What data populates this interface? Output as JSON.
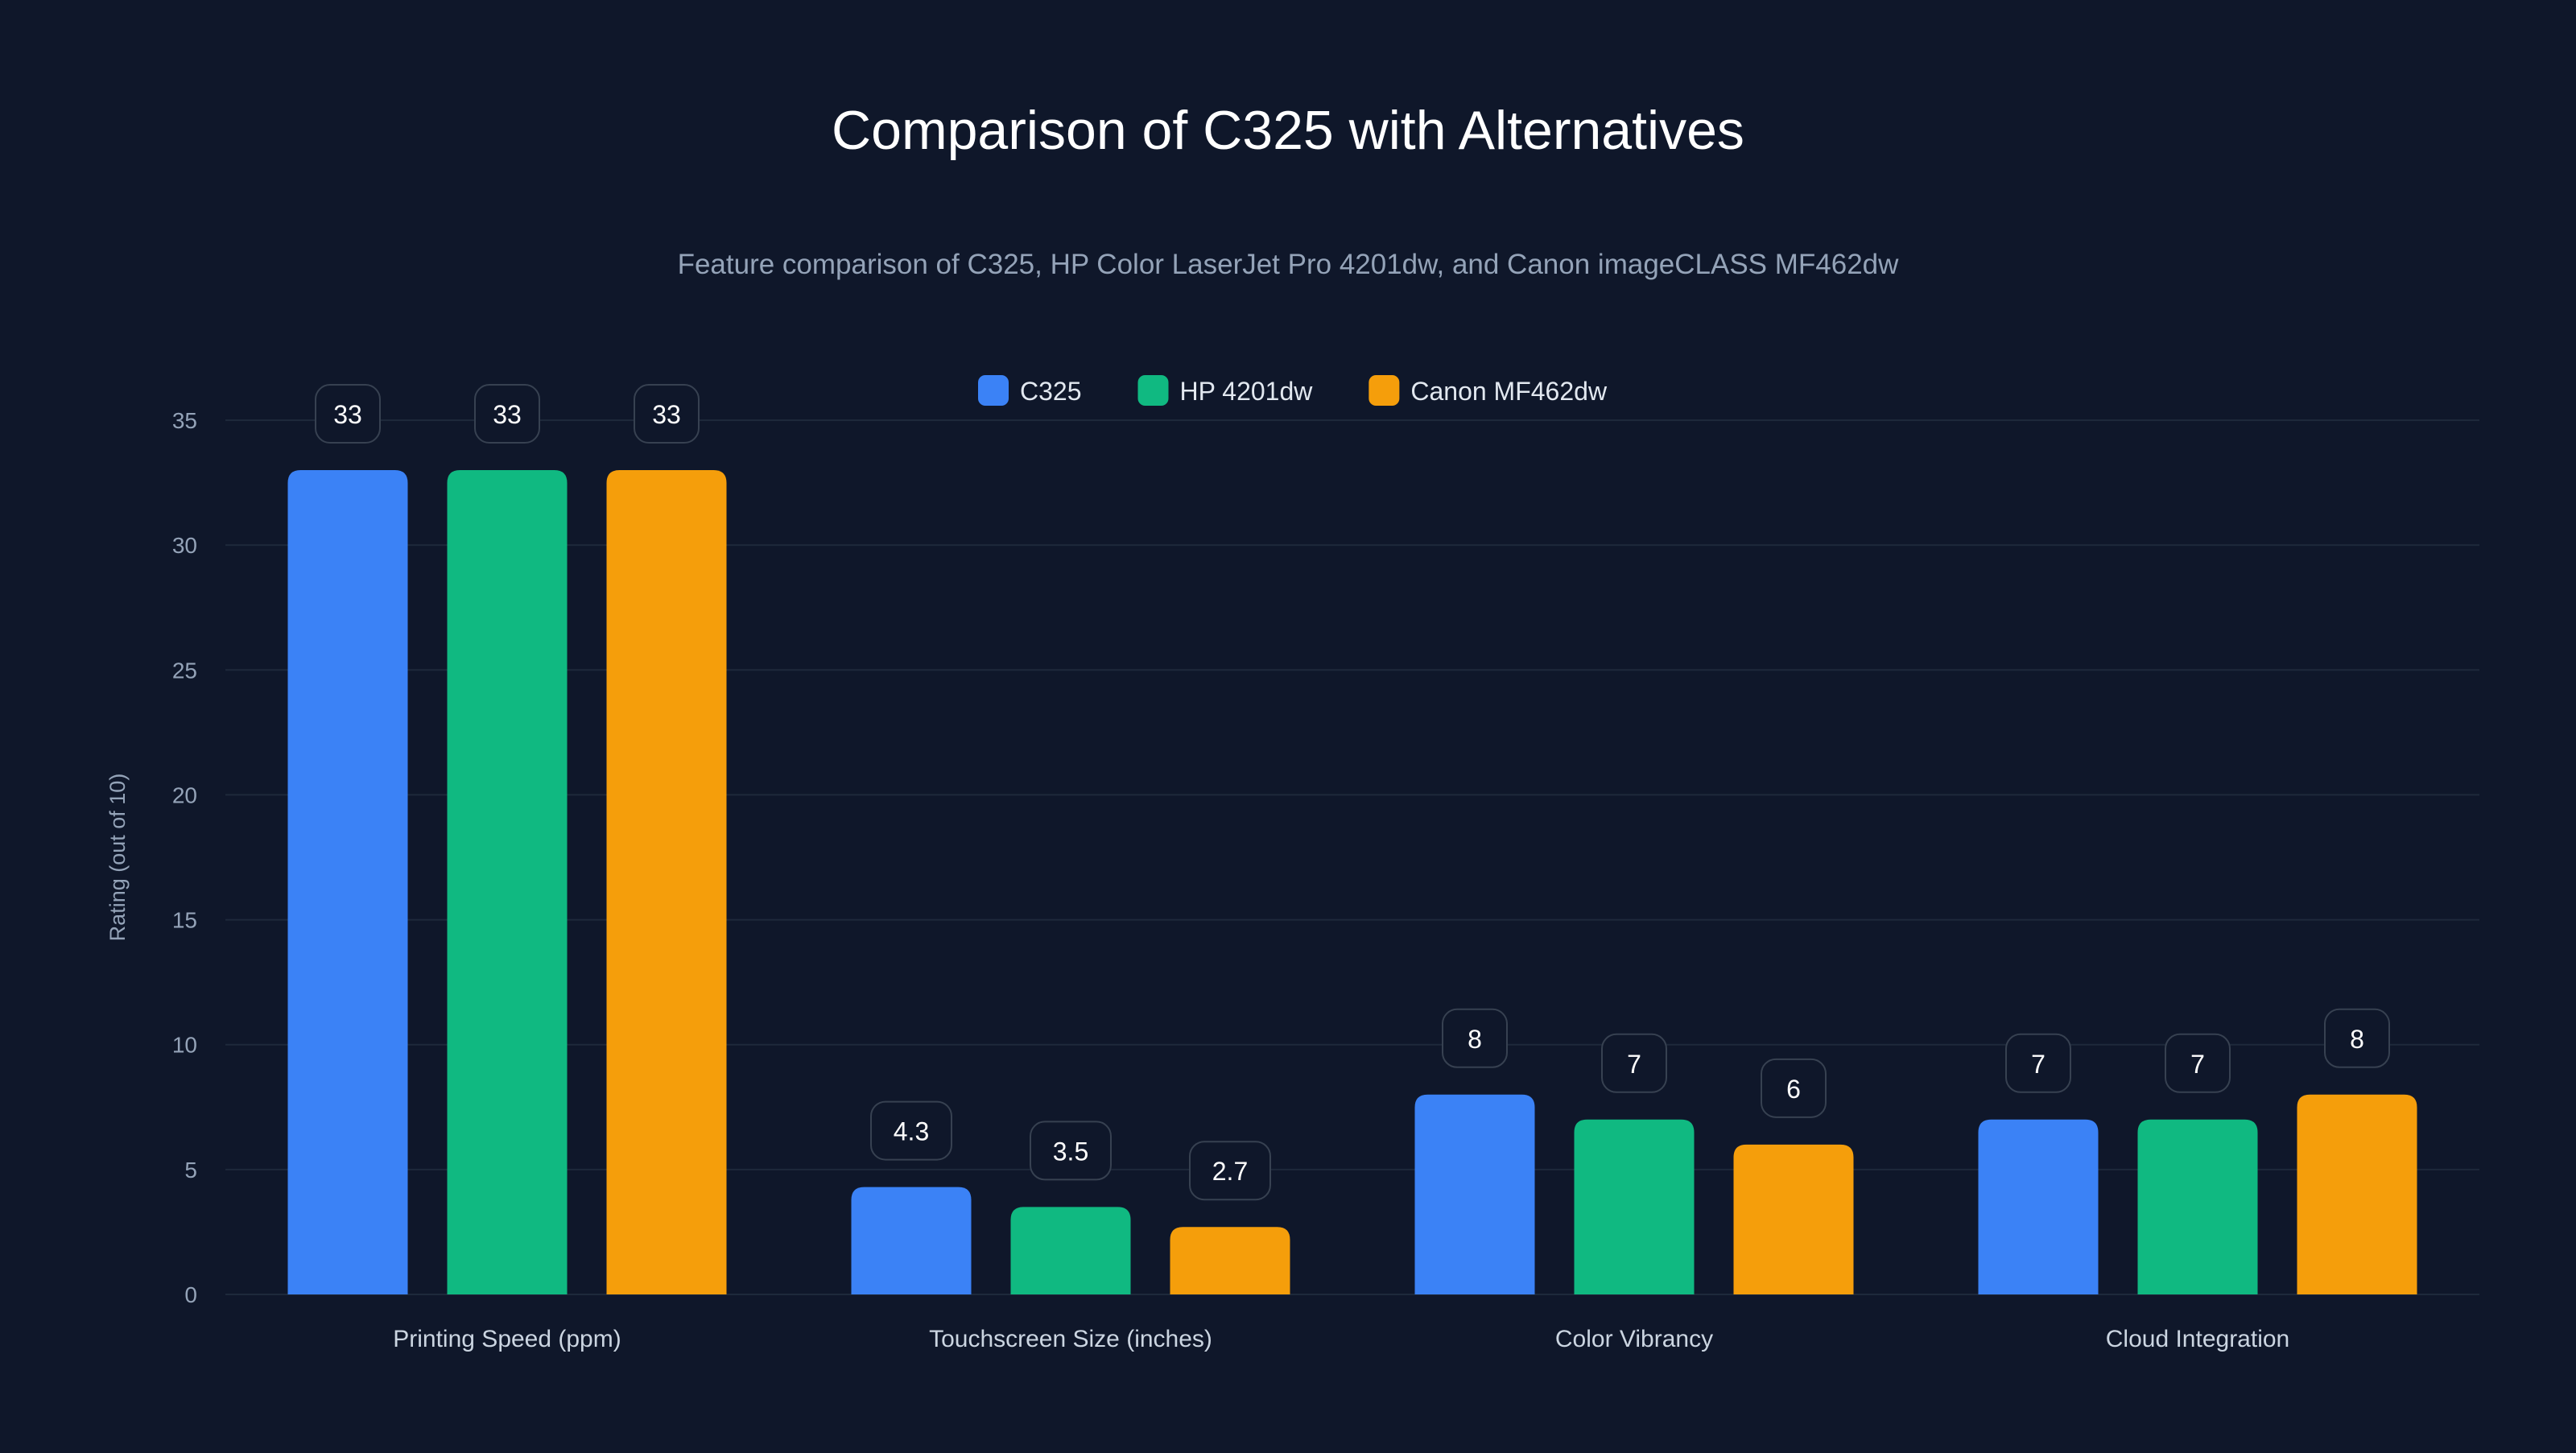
{
  "chart_data": {
    "type": "bar",
    "title": "Comparison of C325 with Alternatives",
    "subtitle": "Feature comparison of C325, HP Color LaserJet Pro 4201dw, and Canon imageCLASS MF462dw",
    "xlabel": "",
    "ylabel": "Rating (out of 10)",
    "ylim": [
      0,
      35
    ],
    "yticks": [
      0,
      5,
      10,
      15,
      20,
      25,
      30,
      35
    ],
    "grid": true,
    "legend_position": "top-center",
    "categories": [
      "Printing Speed (ppm)",
      "Touchscreen Size (inches)",
      "Color Vibrancy",
      "Cloud Integration"
    ],
    "series": [
      {
        "name": "C325",
        "color": "#3b82f6",
        "values": [
          33,
          4.3,
          8,
          7
        ]
      },
      {
        "name": "HP 4201dw",
        "color": "#10b981",
        "values": [
          33,
          3.5,
          7,
          7
        ]
      },
      {
        "name": "Canon MF462dw",
        "color": "#f59e0b",
        "values": [
          33,
          2.7,
          6,
          8
        ]
      }
    ]
  }
}
